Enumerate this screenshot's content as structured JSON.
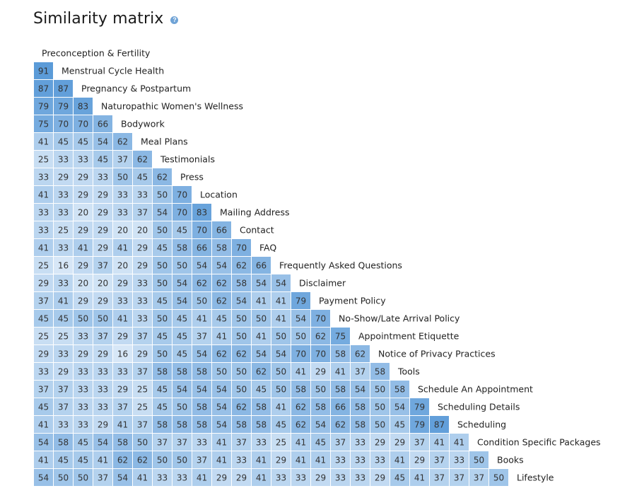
{
  "header": {
    "title": "Similarity matrix",
    "help_icon": "?"
  },
  "colors": {
    "low": "#d7e7f7",
    "high": "#5b9bd8",
    "text": "#333333",
    "label": "#222222"
  },
  "chart_data": {
    "type": "heatmap",
    "title": "Similarity matrix",
    "labels": [
      "Preconception & Fertility",
      "Menstrual Cycle Health",
      "Pregnancy & Postpartum",
      "Naturopathic Women's Wellness",
      "Bodywork",
      "Meal Plans",
      "Testimonials",
      "Press",
      "Location",
      "Mailing Address",
      "Contact",
      "FAQ",
      "Frequently Asked Questions",
      "Disclaimer",
      "Payment Policy",
      "No-Show/Late Arrival Policy",
      "Appointment Etiquette",
      "Notice of Privacy Practices",
      "Tools",
      "Schedule An Appointment",
      "Scheduling Details",
      "Scheduling",
      "Condition Specific Packages",
      "Books",
      "Lifestyle"
    ],
    "rows": [
      [],
      [
        91
      ],
      [
        87,
        87
      ],
      [
        79,
        79,
        83
      ],
      [
        75,
        70,
        70,
        66
      ],
      [
        41,
        45,
        45,
        54,
        62
      ],
      [
        25,
        33,
        33,
        45,
        37,
        62
      ],
      [
        33,
        29,
        29,
        33,
        50,
        45,
        62
      ],
      [
        41,
        33,
        29,
        29,
        33,
        33,
        50,
        70
      ],
      [
        33,
        33,
        20,
        29,
        33,
        37,
        54,
        70,
        83
      ],
      [
        33,
        25,
        29,
        29,
        20,
        20,
        50,
        45,
        70,
        66
      ],
      [
        41,
        33,
        41,
        29,
        41,
        29,
        45,
        58,
        66,
        58,
        70
      ],
      [
        25,
        16,
        29,
        37,
        20,
        29,
        50,
        50,
        54,
        54,
        62,
        66
      ],
      [
        29,
        33,
        20,
        20,
        29,
        33,
        50,
        54,
        62,
        62,
        58,
        54,
        54
      ],
      [
        37,
        41,
        29,
        29,
        33,
        33,
        45,
        54,
        50,
        62,
        54,
        41,
        41,
        79
      ],
      [
        45,
        45,
        50,
        50,
        41,
        33,
        50,
        45,
        41,
        45,
        50,
        50,
        41,
        54,
        70
      ],
      [
        25,
        25,
        33,
        37,
        29,
        37,
        45,
        45,
        37,
        41,
        50,
        41,
        50,
        50,
        62,
        75
      ],
      [
        29,
        33,
        29,
        29,
        16,
        29,
        50,
        45,
        54,
        62,
        62,
        54,
        54,
        70,
        70,
        58,
        62
      ],
      [
        33,
        29,
        33,
        33,
        33,
        37,
        58,
        58,
        58,
        50,
        50,
        62,
        50,
        41,
        29,
        41,
        37,
        58
      ],
      [
        37,
        37,
        33,
        33,
        29,
        25,
        45,
        54,
        54,
        54,
        50,
        45,
        50,
        58,
        50,
        58,
        54,
        50,
        58
      ],
      [
        45,
        37,
        33,
        33,
        37,
        25,
        45,
        50,
        58,
        54,
        62,
        58,
        41,
        62,
        58,
        66,
        58,
        50,
        54,
        79
      ],
      [
        41,
        33,
        33,
        29,
        41,
        37,
        58,
        58,
        58,
        54,
        58,
        58,
        45,
        62,
        54,
        62,
        58,
        50,
        45,
        79,
        87
      ],
      [
        54,
        58,
        45,
        54,
        58,
        50,
        37,
        37,
        33,
        41,
        37,
        33,
        25,
        41,
        45,
        37,
        33,
        29,
        29,
        37,
        41,
        41
      ],
      [
        41,
        45,
        45,
        41,
        62,
        62,
        50,
        50,
        37,
        41,
        33,
        41,
        29,
        41,
        41,
        33,
        33,
        33,
        41,
        29,
        37,
        33,
        50
      ],
      [
        54,
        50,
        50,
        37,
        54,
        41,
        33,
        33,
        41,
        29,
        29,
        41,
        33,
        33,
        29,
        33,
        33,
        29,
        45,
        41,
        37,
        37,
        37,
        50
      ]
    ],
    "min": 16,
    "max": 91
  }
}
